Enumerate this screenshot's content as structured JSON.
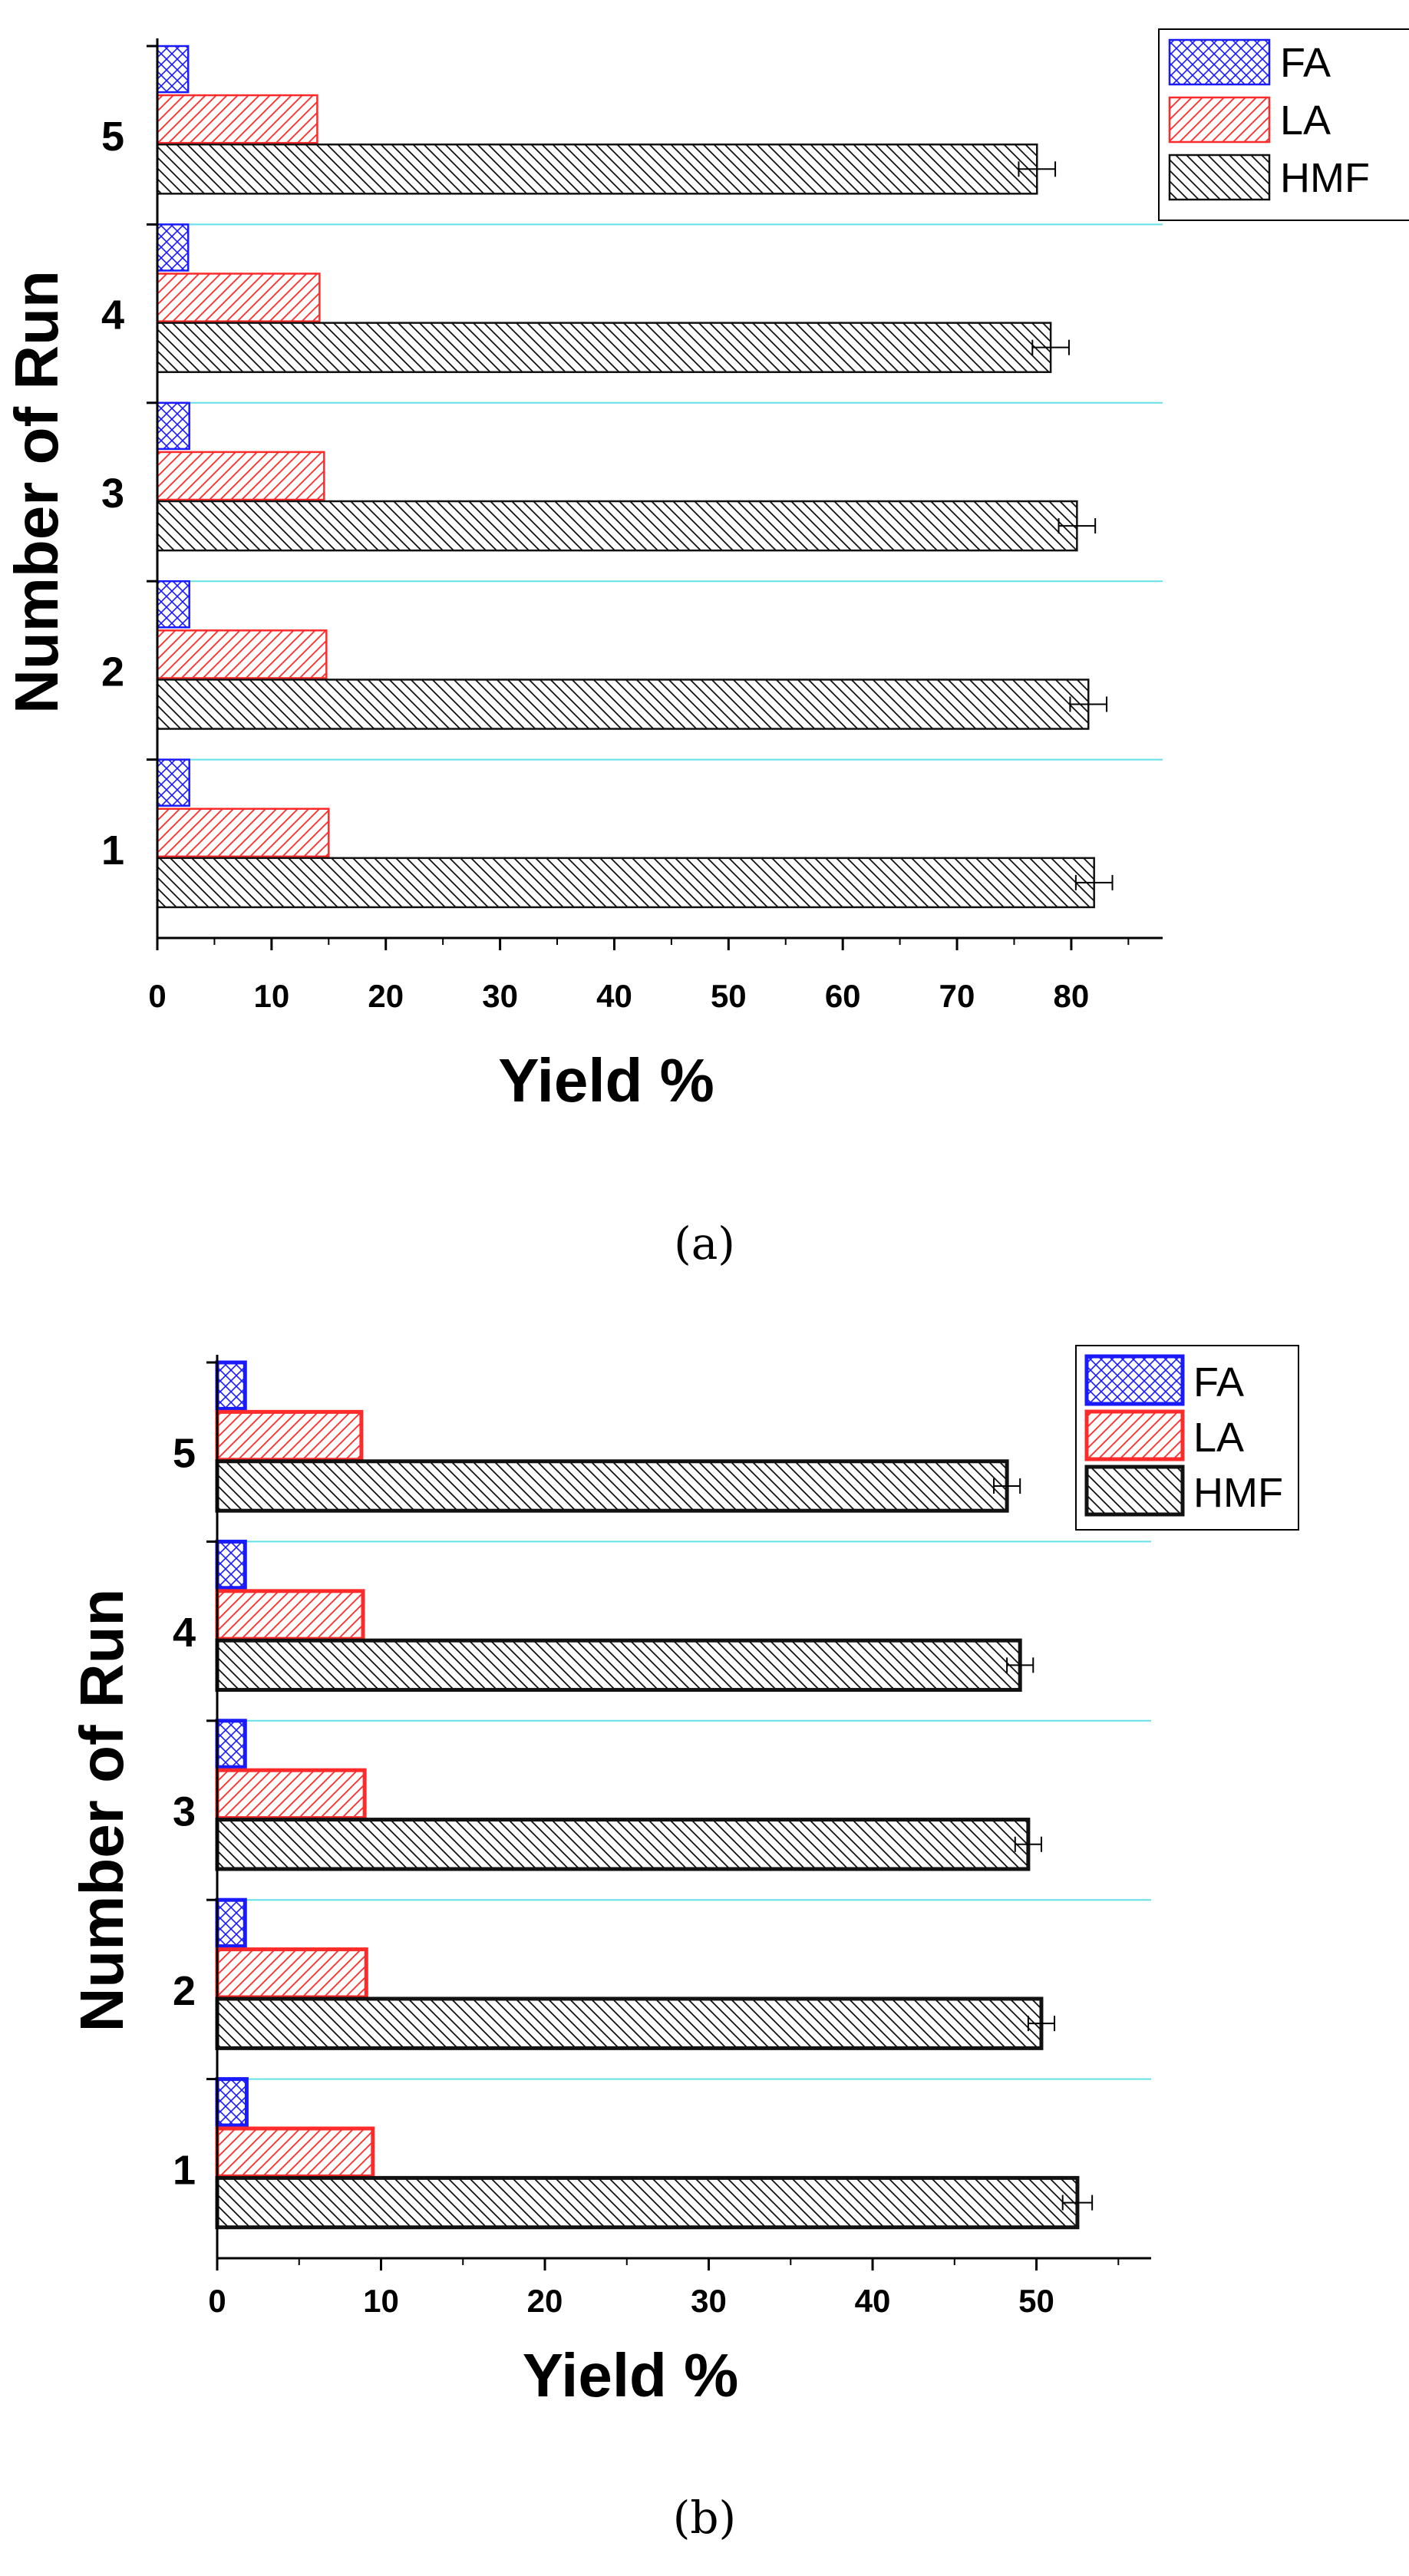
{
  "chart_data": [
    {
      "type": "bar",
      "orientation": "horizontal",
      "caption": "(a)",
      "xlabel": "Yield %",
      "ylabel": "Number of Run",
      "xlim": [
        0,
        88
      ],
      "xticks": [
        "0",
        "10",
        "20",
        "30",
        "40",
        "50",
        "60",
        "70",
        "80"
      ],
      "categories": [
        "1",
        "2",
        "3",
        "4",
        "5"
      ],
      "grid": "horizontal separators between runs",
      "legend_position": "top-right",
      "series": [
        {
          "name": "FA",
          "color": "#1a1aff",
          "hatch": "crosshatch",
          "values": [
            2.8,
            2.8,
            2.8,
            2.7,
            2.7
          ]
        },
        {
          "name": "LA",
          "color": "#ff2a2a",
          "hatch": "forward-diagonal",
          "values": [
            15.0,
            14.8,
            14.6,
            14.2,
            14.0
          ]
        },
        {
          "name": "HMF",
          "color": "#111111",
          "hatch": "back-diagonal",
          "values": [
            82.0,
            81.5,
            80.5,
            78.2,
            77.0
          ],
          "errors": [
            1.6,
            1.6,
            1.6,
            1.6,
            1.6
          ]
        }
      ]
    },
    {
      "type": "bar",
      "orientation": "horizontal",
      "caption": "(b)",
      "xlabel": "Yield %",
      "ylabel": "Number of Run",
      "xlim": [
        0,
        57
      ],
      "xticks": [
        "0",
        "10",
        "20",
        "30",
        "40",
        "50"
      ],
      "categories": [
        "1",
        "2",
        "3",
        "4",
        "5"
      ],
      "grid": "horizontal separators between runs",
      "legend_position": "top-right",
      "series": [
        {
          "name": "FA",
          "color": "#1a1aff",
          "hatch": "crosshatch",
          "values": [
            1.8,
            1.7,
            1.7,
            1.7,
            1.7
          ]
        },
        {
          "name": "LA",
          "color": "#ff2a2a",
          "hatch": "forward-diagonal",
          "values": [
            9.5,
            9.1,
            9.0,
            8.9,
            8.8
          ]
        },
        {
          "name": "HMF",
          "color": "#111111",
          "hatch": "back-diagonal",
          "values": [
            52.5,
            50.3,
            49.5,
            49.0,
            48.2
          ],
          "errors": [
            0.9,
            0.8,
            0.8,
            0.8,
            0.8
          ]
        }
      ]
    }
  ]
}
